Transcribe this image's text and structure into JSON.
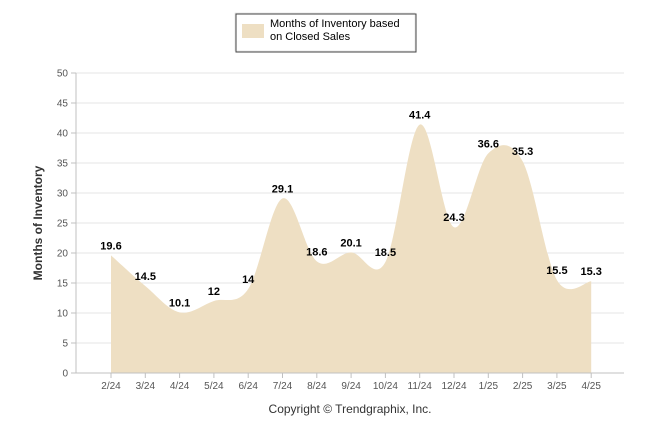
{
  "chart_data": {
    "type": "area",
    "categories": [
      "2/24",
      "3/24",
      "4/24",
      "5/24",
      "6/24",
      "7/24",
      "8/24",
      "9/24",
      "10/24",
      "11/24",
      "12/24",
      "1/25",
      "2/25",
      "3/25",
      "4/25"
    ],
    "series": [
      {
        "name": "Months of Inventory based on Closed Sales",
        "legend_lines": [
          "Months of Inventory based",
          "on Closed Sales"
        ],
        "values": [
          19.6,
          14.5,
          10.1,
          12,
          14,
          29.1,
          18.6,
          20.1,
          18.5,
          41.4,
          24.3,
          36.6,
          35.3,
          15.5,
          15.3
        ],
        "labels": [
          "19.6",
          "14.5",
          "10.1",
          "12",
          "14",
          "29.1",
          "18.6",
          "20.1",
          "18.5",
          "41.4",
          "24.3",
          "36.6",
          "35.3",
          "15.5",
          "15.3"
        ],
        "color": "#eedfc3"
      }
    ],
    "ylabel": "Months of Inventory",
    "ylim": [
      0,
      50
    ],
    "yticks": [
      0,
      5,
      10,
      15,
      20,
      25,
      30,
      35,
      40,
      45,
      50
    ],
    "grid": true,
    "legend_position": "top-center",
    "footer": "Copyright © Trendgraphix, Inc."
  }
}
